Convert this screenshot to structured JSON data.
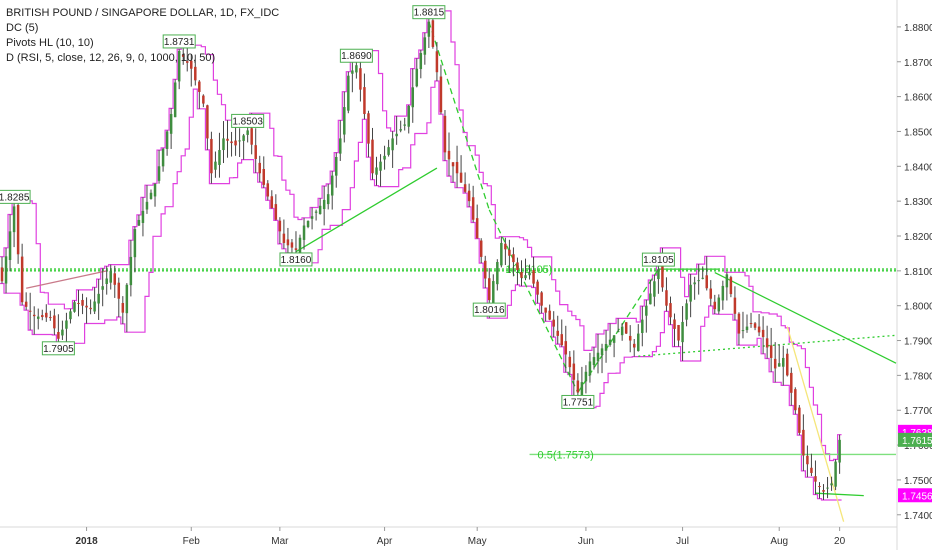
{
  "header": {
    "title": "BRITISH POUND / SINGAPORE DOLLAR, 1D, FX_IDC",
    "indicators": [
      "DC (5)",
      "Pivots HL (10, 10)",
      "D (RSI, 5, close, 12, 26, 9, 0, 1000, 10, 50)"
    ]
  },
  "colors": {
    "up": "#3f8d3f",
    "down": "#c0392b",
    "wick": "#444444",
    "donchian": "#e040e0",
    "trend": "#2ecc2e",
    "fib": "#7ee07e",
    "yellow": "#f5e67a",
    "price_tag": "#4caf50",
    "magenta_tag": "#ff00ff"
  },
  "chart_data": {
    "type": "candlestick",
    "ylim": [
      1.7385,
      1.886
    ],
    "x_range": [
      0,
      222
    ],
    "yticks": [
      "1.7400",
      "1.7500",
      "1.7600",
      "1.7700",
      "1.7800",
      "1.7900",
      "1.8000",
      "1.8100",
      "1.8200",
      "1.8300",
      "1.8400",
      "1.8500",
      "1.8600",
      "1.8700",
      "1.8800"
    ],
    "ytick_values": [
      1.74,
      1.75,
      1.76,
      1.77,
      1.78,
      1.79,
      1.8,
      1.81,
      1.82,
      1.83,
      1.84,
      1.85,
      1.86,
      1.87,
      1.88
    ],
    "xticks": [
      {
        "label": "2018",
        "x": 21,
        "bold": true
      },
      {
        "label": "Feb",
        "x": 47
      },
      {
        "label": "Mar",
        "x": 69
      },
      {
        "label": "Apr",
        "x": 95
      },
      {
        "label": "May",
        "x": 118
      },
      {
        "label": "Jun",
        "x": 145
      },
      {
        "label": "Jul",
        "x": 169
      },
      {
        "label": "Aug",
        "x": 193
      },
      {
        "label": "20",
        "x": 208
      }
    ],
    "anchors": [
      [
        0,
        1.807
      ],
      [
        3,
        1.8285
      ],
      [
        5,
        1.801
      ],
      [
        8,
        1.797
      ],
      [
        12,
        1.7965
      ],
      [
        14,
        1.7905
      ],
      [
        18,
        1.801
      ],
      [
        22,
        1.799
      ],
      [
        27,
        1.81
      ],
      [
        30,
        1.798
      ],
      [
        33,
        1.822
      ],
      [
        38,
        1.835
      ],
      [
        42,
        1.855
      ],
      [
        44,
        1.8731
      ],
      [
        47,
        1.868
      ],
      [
        50,
        1.858
      ],
      [
        52,
        1.838
      ],
      [
        55,
        1.848
      ],
      [
        58,
        1.846
      ],
      [
        61,
        1.8503
      ],
      [
        64,
        1.838
      ],
      [
        67,
        1.828
      ],
      [
        70,
        1.818
      ],
      [
        73,
        1.816
      ],
      [
        75,
        1.823
      ],
      [
        78,
        1.827
      ],
      [
        81,
        1.832
      ],
      [
        84,
        1.848
      ],
      [
        86,
        1.866
      ],
      [
        88,
        1.869
      ],
      [
        90,
        1.855
      ],
      [
        92,
        1.838
      ],
      [
        95,
        1.843
      ],
      [
        97,
        1.848
      ],
      [
        100,
        1.852
      ],
      [
        103,
        1.868
      ],
      [
        106,
        1.8815
      ],
      [
        108,
        1.867
      ],
      [
        110,
        1.844
      ],
      [
        113,
        1.838
      ],
      [
        116,
        1.83
      ],
      [
        119,
        1.814
      ],
      [
        121,
        1.8016
      ],
      [
        124,
        1.818
      ],
      [
        127,
        1.8125
      ],
      [
        129,
        1.808
      ],
      [
        131,
        1.8095
      ],
      [
        134,
        1.8
      ],
      [
        137,
        1.794
      ],
      [
        140,
        1.786
      ],
      [
        143,
        1.7751
      ],
      [
        146,
        1.784
      ],
      [
        150,
        1.789
      ],
      [
        154,
        1.794
      ],
      [
        157,
        1.788
      ],
      [
        160,
        1.8
      ],
      [
        163,
        1.8105
      ],
      [
        165,
        1.8
      ],
      [
        168,
        1.79
      ],
      [
        171,
        1.806
      ],
      [
        174,
        1.808
      ],
      [
        177,
        1.799
      ],
      [
        180,
        1.809
      ],
      [
        183,
        1.792
      ],
      [
        186,
        1.795
      ],
      [
        189,
        1.791
      ],
      [
        192,
        1.782
      ],
      [
        194,
        1.785
      ],
      [
        197,
        1.77
      ],
      [
        199,
        1.757
      ],
      [
        202,
        1.7495
      ],
      [
        204,
        1.7466
      ],
      [
        206,
        1.749
      ],
      [
        208,
        1.7615
      ]
    ],
    "pivots": [
      {
        "label": "1.8285",
        "x": 3,
        "price": 1.8285,
        "pos": "high"
      },
      {
        "label": "1.7905",
        "x": 14,
        "price": 1.7905,
        "pos": "low"
      },
      {
        "label": "1.8731",
        "x": 44,
        "price": 1.8731,
        "pos": "high"
      },
      {
        "label": "1.8503",
        "x": 61,
        "price": 1.8503,
        "pos": "high"
      },
      {
        "label": "1.8160",
        "x": 73,
        "price": 1.816,
        "pos": "low"
      },
      {
        "label": "1.8690",
        "x": 88,
        "price": 1.869,
        "pos": "high"
      },
      {
        "label": "1.8815",
        "x": 106,
        "price": 1.8815,
        "pos": "high"
      },
      {
        "label": "1.8016",
        "x": 121,
        "price": 1.8016,
        "pos": "low"
      },
      {
        "label": "1.7751",
        "x": 143,
        "price": 1.7751,
        "pos": "low"
      },
      {
        "label": "1.8105",
        "x": 163,
        "price": 1.8105,
        "pos": "high"
      }
    ],
    "hlines": [
      {
        "price": 1.8105,
        "x0": 0,
        "x1": 222,
        "label": "1(1.8105)",
        "label_x": 125
      },
      {
        "price": 1.81,
        "x0": 0,
        "x1": 222,
        "label": "",
        "label_x": 0
      }
    ],
    "fib_level": {
      "label": "0.5(1.7573)",
      "price": 1.7573,
      "x0": 131,
      "x1": 222
    },
    "trendlines": [
      {
        "from": [
          6,
          1.805
        ],
        "to": [
          26,
          1.81
        ],
        "style": "solid",
        "color": "#c97a8a"
      },
      {
        "from": [
          73,
          1.8155
        ],
        "to": [
          108,
          1.8395
        ],
        "style": "solid",
        "color": "#2ecc2e"
      },
      {
        "from": [
          106,
          1.8815
        ],
        "to": [
          121,
          1.8275
        ],
        "style": "dashed",
        "color": "#2ecc2e"
      },
      {
        "from": [
          121,
          1.8275
        ],
        "to": [
          143,
          1.7751
        ],
        "style": "dashed",
        "color": "#2ecc2e"
      },
      {
        "from": [
          143,
          1.7751
        ],
        "to": [
          163,
          1.8105
        ],
        "style": "dashed",
        "color": "#2ecc2e"
      },
      {
        "from": [
          163,
          1.8105
        ],
        "to": [
          178,
          1.8105
        ],
        "style": "solid",
        "color": "#2ecc2e"
      },
      {
        "from": [
          177,
          1.8095
        ],
        "to": [
          222,
          1.7835
        ],
        "style": "solid",
        "color": "#2ecc2e"
      },
      {
        "from": [
          158,
          1.7855
        ],
        "to": [
          222,
          1.7915
        ],
        "style": "dotted",
        "color": "#2ecc2e"
      },
      {
        "from": [
          195,
          1.794
        ],
        "to": [
          209,
          1.738
        ],
        "style": "solid",
        "color": "#f5e67a"
      },
      {
        "from": [
          202,
          1.7462
        ],
        "to": [
          214,
          1.7455
        ],
        "style": "solid",
        "color": "#2ecc2e"
      }
    ],
    "price_tags": [
      {
        "label": "1.7638",
        "price": 1.7638,
        "color": "#ff00ff"
      },
      {
        "label": "1.7615",
        "price": 1.7615,
        "color": "#4caf50"
      },
      {
        "label": "1.7456",
        "price": 1.7456,
        "color": "#ff00ff"
      }
    ]
  }
}
